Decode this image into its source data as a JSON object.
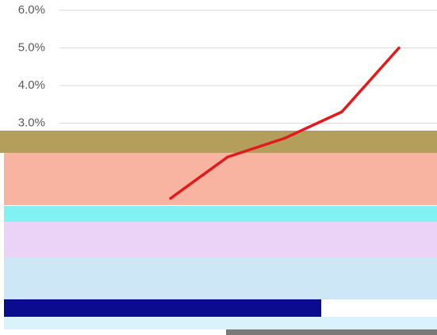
{
  "chart_data": {
    "type": "line",
    "categories": [
      null,
      null,
      null,
      null,
      null
    ],
    "series": [
      {
        "color": "#e31a1c",
        "values": [
          1.0,
          2.1,
          2.6,
          3.3,
          5.0
        ]
      }
    ],
    "ylim": [
      0,
      6
    ],
    "yticks": [
      {
        "value": 3,
        "label": "3.0%"
      },
      {
        "value": 4,
        "label": "4.0%"
      },
      {
        "value": 5,
        "label": "5.0%"
      },
      {
        "value": 6,
        "label": "6.0%"
      }
    ],
    "grid": true
  }
}
